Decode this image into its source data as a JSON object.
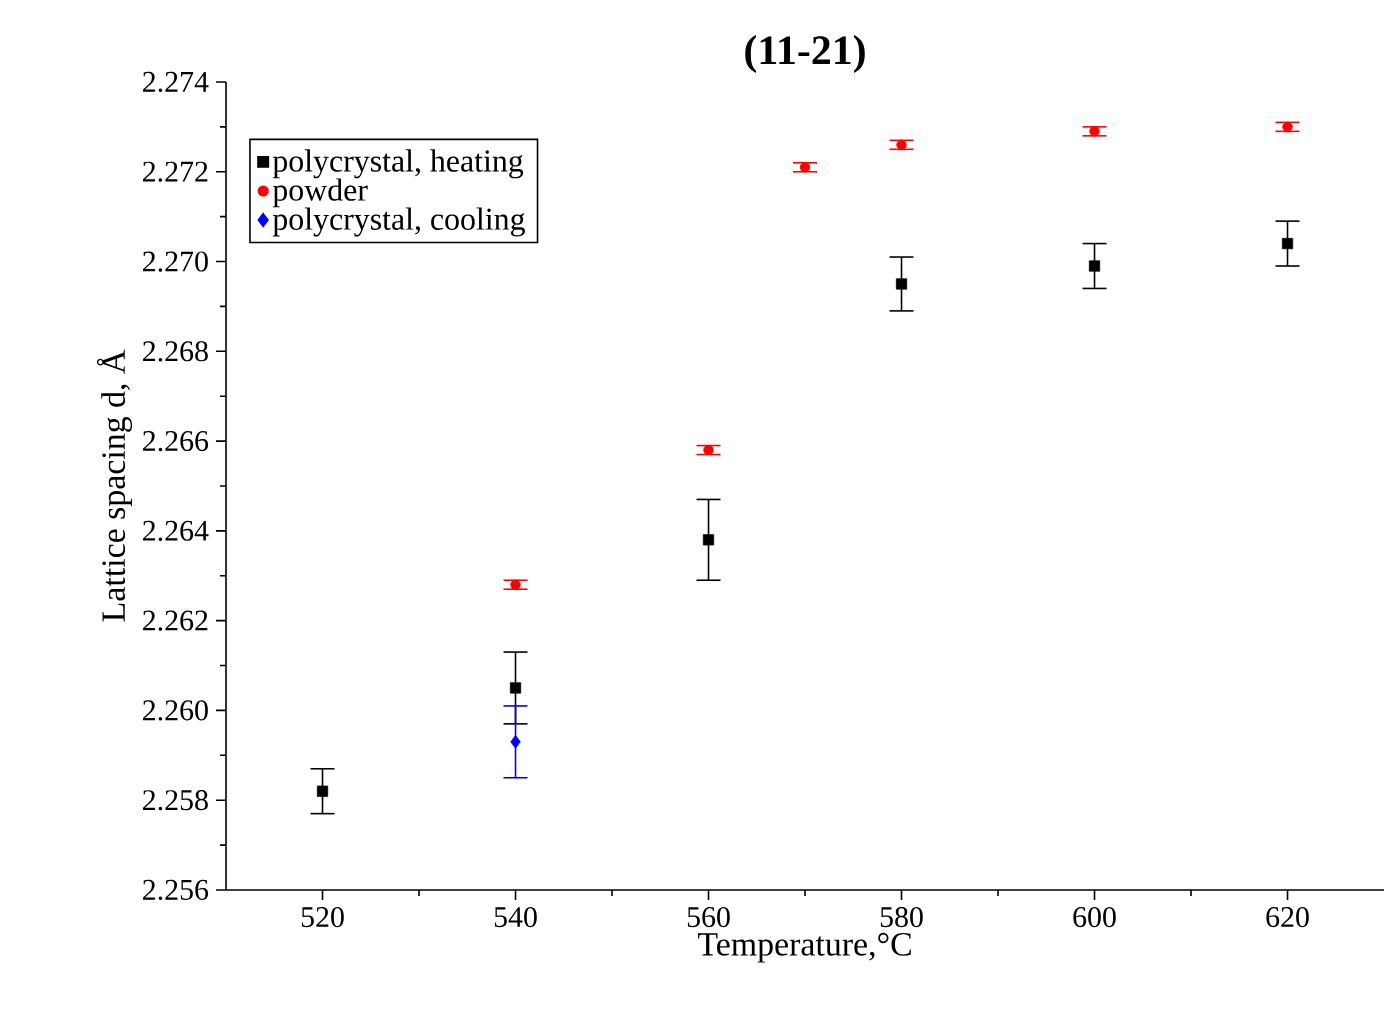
{
  "chart_data": {
    "type": "scatter",
    "title": "(11-21)",
    "xlabel": "Temperature,°C",
    "ylabel": "Lattice spacing d, Å",
    "xlim": [
      510,
      630
    ],
    "ylim": [
      2.256,
      2.274
    ],
    "xticks": [
      520,
      540,
      560,
      580,
      600,
      620
    ],
    "yticks": [
      2.256,
      2.258,
      {
        "value": 2.26,
        "label": "2.260"
      },
      2.262,
      2.264,
      2.266,
      2.268,
      {
        "value": 2.27,
        "label": "2.270"
      },
      2.272,
      2.274
    ],
    "legend": "top left",
    "series": [
      {
        "name": "polycrystal, heating",
        "color": "#000000",
        "marker": "square",
        "x": [
          520,
          540,
          560,
          580,
          600,
          620
        ],
        "values": [
          2.2582,
          2.2605,
          2.2638,
          2.2695,
          2.2699,
          2.2704
        ],
        "errors": [
          0.0005,
          0.0008,
          0.0009,
          0.0006,
          0.0005,
          0.0005
        ]
      },
      {
        "name": "powder",
        "color": "#ff0000",
        "marker": "circle",
        "x": [
          540,
          560,
          570,
          580,
          600,
          620
        ],
        "values": [
          2.2628,
          2.2658,
          2.2721,
          2.2726,
          2.2729,
          2.273
        ],
        "errors": [
          0.0001,
          0.0001,
          0.0001,
          0.0001,
          0.0001,
          0.0001
        ]
      },
      {
        "name": "polycrystal, cooling",
        "color": "#0000ff",
        "marker": "diamond",
        "x": [
          540
        ],
        "values": [
          2.2593
        ],
        "errors": [
          0.0008
        ]
      }
    ]
  }
}
